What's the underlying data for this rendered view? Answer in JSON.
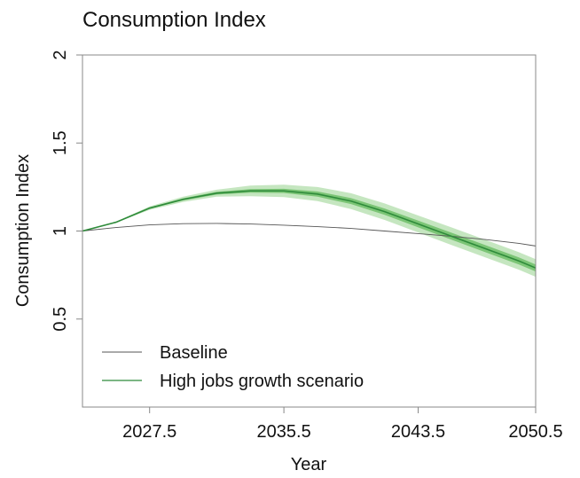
{
  "chart_data": {
    "type": "line",
    "title": "Consumption Index",
    "xlabel": "Year",
    "ylabel": "Consumption Index",
    "x": [
      2023.5,
      2025.5,
      2027.5,
      2029.5,
      2031.5,
      2033.5,
      2035.5,
      2037.5,
      2039.5,
      2041.5,
      2043.5,
      2045.5,
      2047.5,
      2049.5,
      2050.5
    ],
    "series": [
      {
        "name": "Baseline",
        "color": "#555555",
        "values": [
          1.0,
          1.02,
          1.035,
          1.042,
          1.043,
          1.04,
          1.033,
          1.025,
          1.015,
          1.0,
          0.985,
          0.97,
          0.952,
          0.93,
          0.915
        ]
      },
      {
        "name": "High jobs growth scenario",
        "color": "#2e8b3a",
        "values": [
          1.0,
          1.05,
          1.13,
          1.18,
          1.215,
          1.228,
          1.228,
          1.21,
          1.17,
          1.11,
          1.04,
          0.97,
          0.9,
          0.83,
          0.79
        ],
        "bands": [
          {
            "color": "#c5e6c0",
            "upper": [
              1.0,
              1.053,
              1.14,
              1.195,
              1.235,
              1.258,
              1.263,
              1.25,
              1.215,
              1.157,
              1.088,
              1.02,
              0.95,
              0.88,
              0.84
            ],
            "lower": [
              1.0,
              1.047,
              1.12,
              1.165,
              1.195,
              1.198,
              1.193,
              1.17,
              1.125,
              1.063,
              0.992,
              0.92,
              0.85,
              0.78,
              0.74
            ]
          },
          {
            "color": "#7cc576",
            "upper": [
              1.0,
              1.051,
              1.134,
              1.186,
              1.223,
              1.238,
              1.24,
              1.225,
              1.187,
              1.128,
              1.059,
              0.99,
              0.92,
              0.85,
              0.81
            ],
            "lower": [
              1.0,
              1.049,
              1.126,
              1.174,
              1.207,
              1.218,
              1.216,
              1.195,
              1.153,
              1.092,
              1.021,
              0.95,
              0.88,
              0.81,
              0.77
            ]
          }
        ]
      }
    ],
    "xlim": [
      2023.5,
      2050.5
    ],
    "xticks": [
      2027.5,
      2035.5,
      2043.5,
      2050.5
    ],
    "ylim": [
      0,
      2
    ],
    "yticks": [
      0.5,
      1,
      1.5,
      2
    ],
    "legend": "lower-left"
  }
}
